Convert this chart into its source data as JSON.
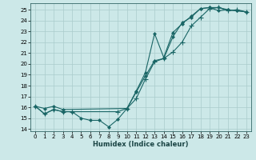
{
  "xlabel": "Humidex (Indice chaleur)",
  "bg_color": "#cce8e8",
  "grid_color": "#aacccc",
  "line_color": "#1a6666",
  "xlim": [
    -0.5,
    23.5
  ],
  "ylim": [
    13.8,
    25.6
  ],
  "xticks": [
    0,
    1,
    2,
    3,
    4,
    5,
    6,
    7,
    8,
    9,
    10,
    11,
    12,
    13,
    14,
    15,
    16,
    17,
    18,
    19,
    20,
    21,
    22,
    23
  ],
  "yticks": [
    14,
    15,
    16,
    17,
    18,
    19,
    20,
    21,
    22,
    23,
    24,
    25
  ],
  "line1_x": [
    0,
    1,
    2,
    3,
    4,
    5,
    6,
    7,
    8,
    9,
    10,
    11,
    12,
    13,
    14,
    15,
    16,
    17,
    18,
    19,
    20,
    21,
    22,
    23
  ],
  "line1_y": [
    16.1,
    15.4,
    15.8,
    15.6,
    15.6,
    15.0,
    14.8,
    14.8,
    14.2,
    14.9,
    15.9,
    17.4,
    18.9,
    20.3,
    20.5,
    22.5,
    23.8,
    24.3,
    25.1,
    25.2,
    24.9,
    25.0,
    24.9,
    24.8
  ],
  "line2_x": [
    0,
    1,
    2,
    3,
    4,
    9,
    10,
    11,
    12,
    13,
    14,
    15,
    16,
    17,
    18,
    19,
    20,
    21,
    22,
    23
  ],
  "line2_y": [
    16.1,
    15.4,
    15.8,
    15.6,
    15.6,
    15.6,
    15.9,
    16.8,
    18.6,
    20.2,
    20.5,
    21.1,
    22.0,
    23.5,
    24.3,
    25.1,
    25.2,
    24.9,
    25.0,
    24.8
  ],
  "line3_x": [
    0,
    1,
    2,
    3,
    10,
    11,
    12,
    13,
    14,
    15,
    16,
    17,
    18,
    19,
    20,
    21,
    22,
    23
  ],
  "line3_y": [
    16.1,
    15.9,
    16.1,
    15.8,
    15.9,
    17.5,
    19.2,
    22.8,
    20.6,
    22.9,
    23.7,
    24.4,
    25.1,
    25.2,
    25.2,
    25.0,
    24.9,
    24.8
  ]
}
